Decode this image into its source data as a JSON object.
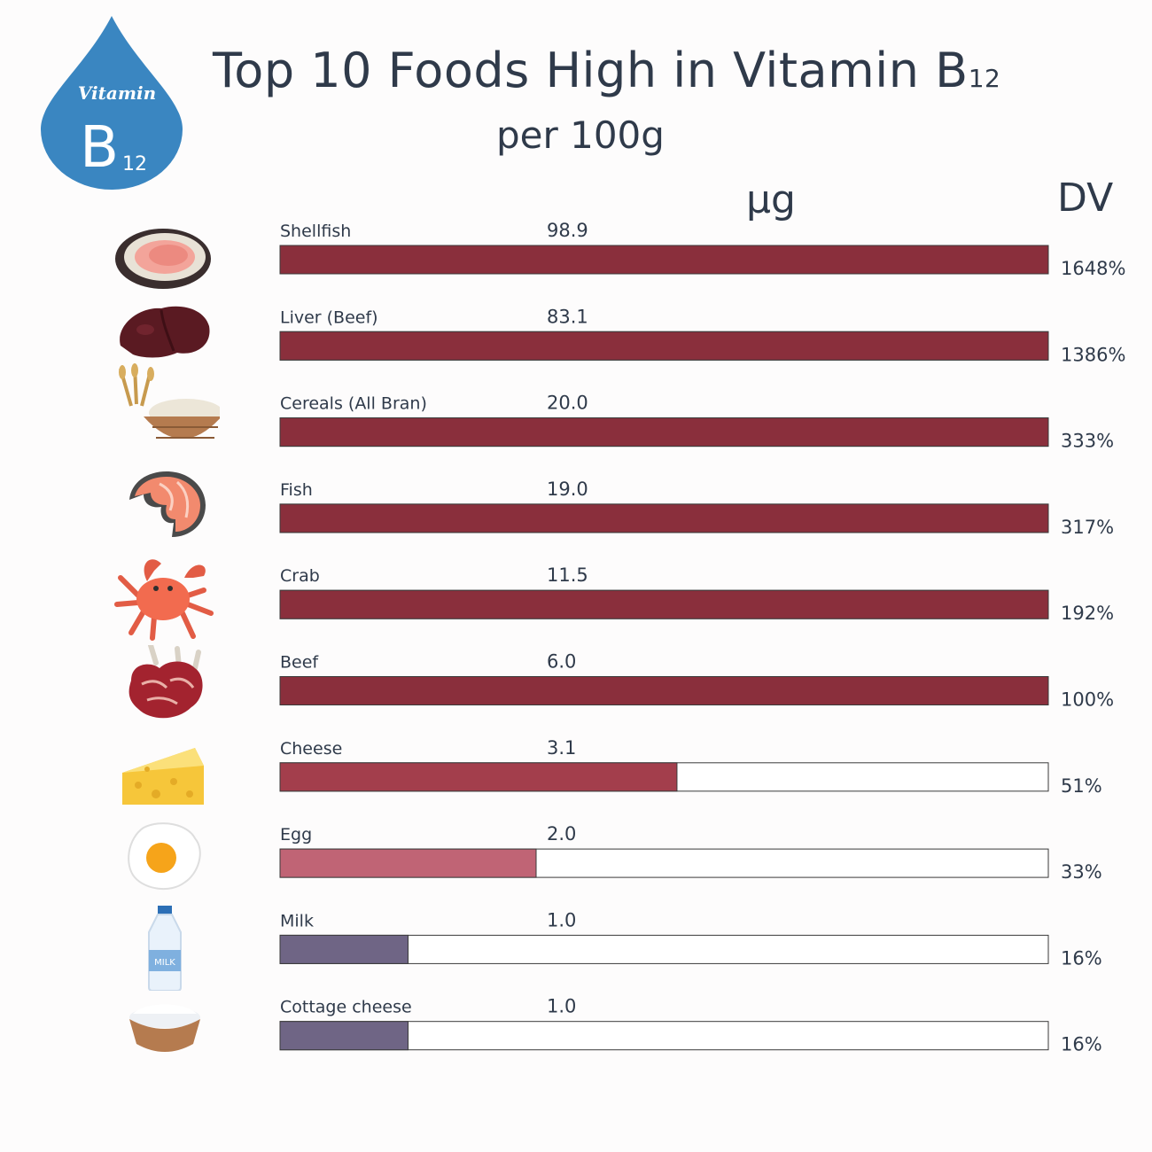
{
  "header": {
    "title_main": "Top 10 Foods High in Vitamin B",
    "title_sub": "12",
    "subtitle": "per 100g",
    "badge_word": "Vitamin",
    "badge_letter": "B",
    "badge_sub": "12"
  },
  "columns": {
    "value_unit": "µg",
    "dv_label": "DV"
  },
  "colors": {
    "high": "#8a2f3c",
    "cheese": "#a33e4c",
    "egg": "#c06475",
    "low": "#6f6585",
    "drop": "#3a86c1",
    "text": "#2f3a4a"
  },
  "chart_data": {
    "type": "bar",
    "orientation": "horizontal",
    "title": "Top 10 Foods High in Vitamin B12",
    "subtitle": "per 100g",
    "value_unit": "µg",
    "bar_scale_max": 6.0,
    "categories": [
      "Shellfish",
      "Liver (Beef)",
      "Cereals (All Bran)",
      "Fish",
      "Crab",
      "Beef",
      "Cheese",
      "Egg",
      "Milk",
      "Cottage cheese"
    ],
    "value_labels": [
      "98.9",
      "83.1",
      "20.0",
      "19.0",
      "11.5",
      "6.0",
      "3.1",
      "2.0",
      "1.0",
      "1.0"
    ],
    "values": [
      98.9,
      83.1,
      20.0,
      19.0,
      11.5,
      6.0,
      3.1,
      2.0,
      1.0,
      1.0
    ],
    "dv": [
      "1648%",
      "1386%",
      "333%",
      "317%",
      "192%",
      "100%",
      "51%",
      "33%",
      "16%",
      "16%"
    ],
    "icons": [
      "shellfish-icon",
      "liver-icon",
      "cereal-bowl-icon",
      "salmon-steak-icon",
      "crab-icon",
      "beef-chops-icon",
      "cheese-icon",
      "fried-egg-icon",
      "milk-bottle-icon",
      "cottage-cheese-icon"
    ],
    "milk_label": "MILK"
  }
}
